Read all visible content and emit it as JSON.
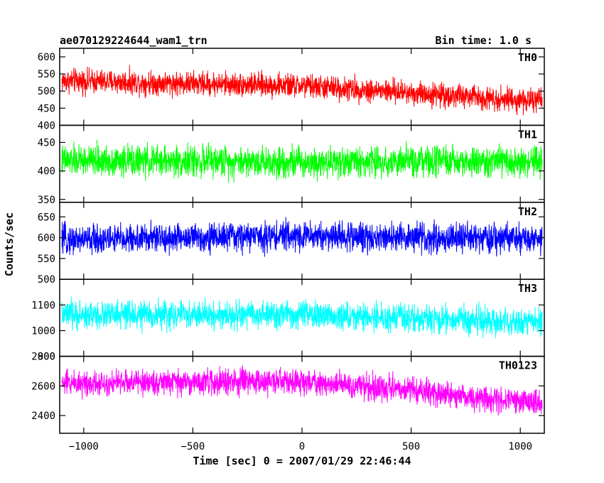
{
  "header": {
    "title": "ae070129224644_wam1_trn",
    "bin_time": "Bin time: 1.0 s"
  },
  "chart_data": {
    "type": "line",
    "xlabel": "Time [sec] 0 = 2007/01/29 22:46:44",
    "ylabel": "Counts/sec",
    "xlim": [
      -1110,
      1110
    ],
    "x_ticks": [
      -1000,
      -500,
      0,
      500,
      1000
    ],
    "x_tick_labels": [
      "−1000",
      "−500",
      "0",
      "500",
      "1000"
    ],
    "x_data_range": [
      -1100,
      1100
    ],
    "panels": [
      {
        "name": "TH0",
        "color": "#ff0000",
        "ylim": [
          400,
          625
        ],
        "y_ticks": [
          400,
          450,
          500,
          550,
          600
        ],
        "y_tick_labels": [
          "400",
          "450",
          "500",
          "550",
          "600"
        ],
        "trend": [
          {
            "x": -1100,
            "y": 530
          },
          {
            "x": 0,
            "y": 515
          },
          {
            "x": 500,
            "y": 495
          },
          {
            "x": 1100,
            "y": 470
          }
        ],
        "noise_half_range": 45
      },
      {
        "name": "TH1",
        "color": "#00ff00",
        "ylim": [
          345,
          480
        ],
        "y_ticks": [
          350,
          400,
          450
        ],
        "y_tick_labels": [
          "350",
          "400",
          "450"
        ],
        "trend": [
          {
            "x": -1100,
            "y": 418
          },
          {
            "x": 1100,
            "y": 415
          }
        ],
        "noise_half_range": 35
      },
      {
        "name": "TH2",
        "color": "#0000ff",
        "ylim": [
          500,
          685
        ],
        "y_ticks": [
          500,
          550,
          600,
          650
        ],
        "y_tick_labels": [
          "500",
          "550",
          "600",
          "650"
        ],
        "trend": [
          {
            "x": -1100,
            "y": 595
          },
          {
            "x": 0,
            "y": 605
          },
          {
            "x": 1100,
            "y": 595
          }
        ],
        "noise_half_range": 45
      },
      {
        "name": "TH3",
        "color": "#00ffff",
        "ylim": [
          900,
          1200
        ],
        "y_ticks": [
          900,
          1000,
          1100
        ],
        "y_tick_labels": [
          "900",
          "1000",
          "1100"
        ],
        "trend": [
          {
            "x": -1100,
            "y": 1060
          },
          {
            "x": 0,
            "y": 1060
          },
          {
            "x": 1100,
            "y": 1030
          }
        ],
        "noise_half_range": 70
      },
      {
        "name": "TH0123",
        "color": "#ff00ff",
        "ylim": [
          2280,
          2800
        ],
        "y_ticks": [
          2400,
          2600,
          2800
        ],
        "y_tick_labels": [
          "2400",
          "2600",
          "2800"
        ],
        "trend": [
          {
            "x": -1100,
            "y": 2620
          },
          {
            "x": 0,
            "y": 2630
          },
          {
            "x": 500,
            "y": 2570
          },
          {
            "x": 1100,
            "y": 2480
          }
        ],
        "noise_half_range": 110
      }
    ]
  }
}
